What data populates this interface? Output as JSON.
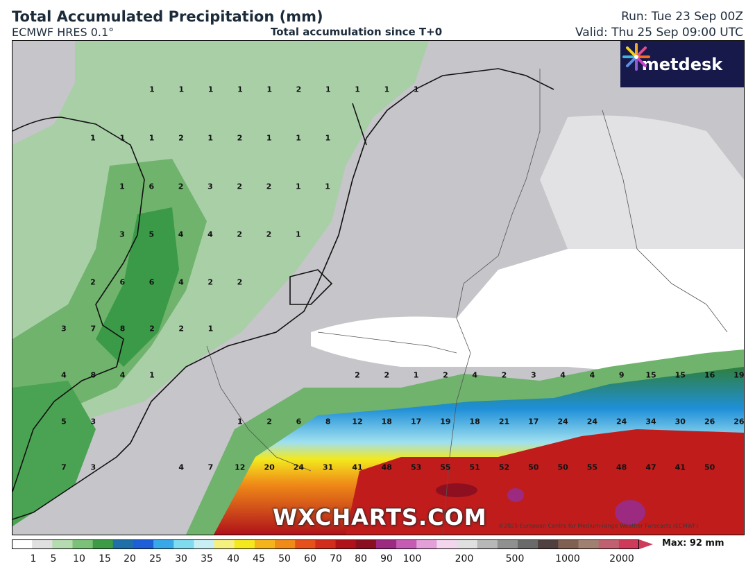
{
  "header": {
    "title": "Total Accumulated Precipitation (mm)",
    "model": "ECMWF HRES 0.1°",
    "subtitle": "Total accumulation since T+0",
    "run": "Run: Tue 23 Sep 00Z",
    "valid": "Valid: Thu 25 Sep 09:00 UTC"
  },
  "logo": {
    "text": "metdesk",
    "icon": "metdesk-flower-icon"
  },
  "watermark": "WXCHARTS.COM",
  "copyright": "©2025 European Centre for Medium-range Weather Forecasts (ECMWF)",
  "colorbar": {
    "ticks": [
      "1",
      "5",
      "10",
      "15",
      "20",
      "25",
      "30",
      "35",
      "40",
      "45",
      "50",
      "60",
      "70",
      "80",
      "90",
      "100",
      "200",
      "500",
      "1000",
      "2000"
    ],
    "max_label": "Max: 92 mm"
  },
  "colors": {
    "land_grey": "#c8c8cc",
    "sea_green": "#a9cfa7",
    "green": "#3a9a48",
    "blue": "#1e5fd8",
    "yellow": "#f0e61e",
    "red": "#d12c1c",
    "magenta": "#9b2a80"
  },
  "grid_values": [
    {
      "row": 0,
      "values": [
        "1",
        "1",
        "1",
        "1",
        "1",
        "2",
        "1",
        "1",
        "1",
        "1"
      ]
    },
    {
      "row": 1,
      "values": [
        "1",
        "1",
        "1",
        "2",
        "1",
        "2",
        "1",
        "1",
        "1"
      ]
    },
    {
      "row": 2,
      "values": [
        "1",
        "6",
        "2",
        "3",
        "2",
        "2",
        "1",
        "1"
      ]
    },
    {
      "row": 3,
      "values": [
        "3",
        "5",
        "4",
        "4",
        "2",
        "2",
        "1"
      ]
    },
    {
      "row": 4,
      "values": [
        "2",
        "6",
        "6",
        "4",
        "2",
        "2"
      ]
    },
    {
      "row": 5,
      "values": [
        "3",
        "7",
        "8",
        "2",
        "2",
        "1"
      ]
    },
    {
      "row": 6,
      "values": [
        "4",
        "8",
        "4",
        "1",
        "2",
        "2",
        "1",
        "2",
        "4",
        "2",
        "3",
        "4",
        "4",
        "9",
        "15",
        "15",
        "16",
        "19"
      ]
    },
    {
      "row": 7,
      "values": [
        "5",
        "3",
        "1",
        "2",
        "6",
        "8",
        "12",
        "18",
        "17",
        "19",
        "18",
        "21",
        "17",
        "24",
        "24",
        "24",
        "34",
        "30",
        "26",
        "26"
      ]
    },
    {
      "row": 8,
      "values": [
        "7",
        "3",
        "4",
        "7",
        "12",
        "20",
        "24",
        "31",
        "41",
        "48",
        "53",
        "55",
        "51",
        "52",
        "50",
        "50",
        "55",
        "48",
        "47",
        "41",
        "50"
      ]
    }
  ]
}
